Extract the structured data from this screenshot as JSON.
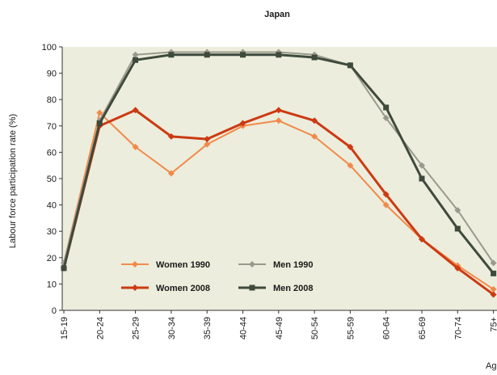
{
  "chart_data": {
    "type": "line",
    "title": "Japan",
    "ylabel": "Labour force participation rate (%)",
    "xlabel": "Age",
    "ylim": [
      0,
      100
    ],
    "yticks": [
      0,
      10,
      20,
      30,
      40,
      50,
      60,
      70,
      80,
      90,
      100
    ],
    "categories": [
      "15-19",
      "20-24",
      "25-29",
      "30-34",
      "35-39",
      "40-44",
      "45-49",
      "50-54",
      "55-59",
      "60-64",
      "65-69",
      "70-74",
      "75+"
    ],
    "grid": false,
    "legend_position": "bottom-left",
    "series": [
      {
        "name": "Women 1990",
        "color": "#f08a4b",
        "marker": "diamond",
        "width": 2,
        "values": [
          18,
          75,
          62,
          52,
          63,
          70,
          72,
          66,
          55,
          40,
          27,
          17,
          8
        ]
      },
      {
        "name": "Women 2008",
        "color": "#cc3a12",
        "marker": "diamond",
        "width": 3,
        "values": [
          16,
          70,
          76,
          66,
          65,
          71,
          76,
          72,
          62,
          44,
          27,
          16,
          6
        ]
      },
      {
        "name": "Men 1990",
        "color": "#9a9a8c",
        "marker": "diamond",
        "width": 2,
        "values": [
          18,
          72,
          97,
          98,
          98,
          98,
          98,
          97,
          93,
          73,
          55,
          38,
          18
        ]
      },
      {
        "name": "Men 2008",
        "color": "#3e4a3c",
        "marker": "square",
        "width": 3,
        "values": [
          16,
          71,
          95,
          97,
          97,
          97,
          97,
          96,
          93,
          77,
          50,
          31,
          14
        ]
      }
    ]
  },
  "colors": {
    "plot_background": "#eceddc",
    "axis": "#333333"
  }
}
